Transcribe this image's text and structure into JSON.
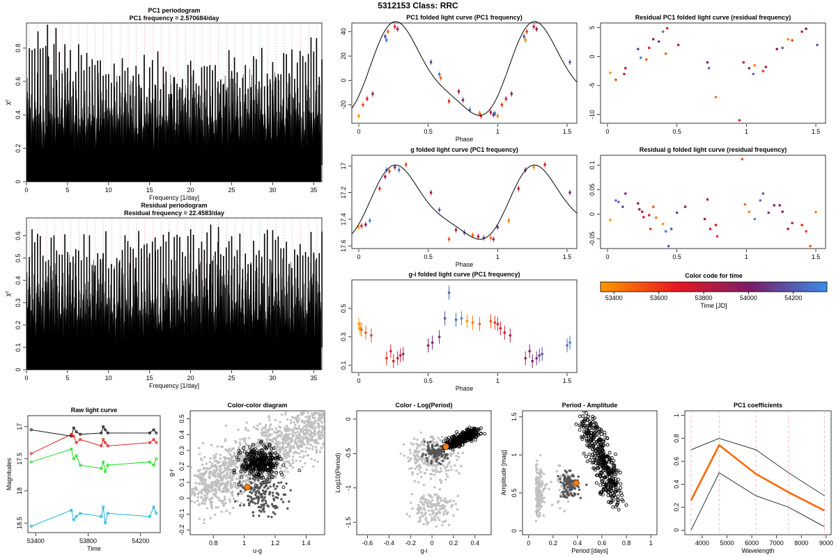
{
  "figure": {
    "header": "5312153     Class: RRC",
    "colorbar_label": "Time [JD]"
  },
  "chart_data": [
    {
      "id": "pc1_periodogram",
      "type": "line",
      "title": "PC1 periodogram",
      "subtitle": "PC1 frequency = 2.570684/day",
      "xlabel": "Frequency [1/day]",
      "ylabel": "χ²",
      "xlim": [
        0,
        36
      ],
      "ylim": [
        0,
        0.95
      ],
      "xticks": [
        0,
        5,
        10,
        15,
        20,
        25,
        30,
        35
      ],
      "yticks": [
        0.0,
        0.2,
        0.4,
        0.6,
        0.8
      ],
      "base_level": 0.28,
      "noise_level": 0.5,
      "peak_frequency": 2.570684,
      "peak_value": 0.94
    },
    {
      "id": "residual_periodogram",
      "type": "line",
      "title": "Residual periodogram",
      "subtitle": "Residual frequency = 22.4583/day",
      "xlabel": "Frequency [1/day]",
      "ylabel": "χ²",
      "xlim": [
        0,
        36
      ],
      "ylim": [
        0,
        0.68
      ],
      "xticks": [
        0,
        5,
        10,
        15,
        20,
        25,
        30,
        35
      ],
      "yticks": [
        0.0,
        0.1,
        0.2,
        0.3,
        0.4,
        0.5,
        0.6
      ],
      "base_level": 0.2,
      "noise_level": 0.45,
      "peak_frequency": 22.4583,
      "peak_value": 0.65
    },
    {
      "id": "pc1_folded",
      "type": "scatter",
      "title": "PC1 folded light curve (PC1 frequency)",
      "xlabel": "Phase",
      "xlim": [
        -0.05,
        1.57
      ],
      "ylim": [
        -35,
        47
      ],
      "xticks": [
        0.0,
        0.5,
        1.0,
        1.5
      ],
      "yticks": [
        -20,
        0,
        20,
        40
      ],
      "points": [
        [
          0.0,
          -29
        ],
        [
          0.03,
          -20
        ],
        [
          0.06,
          -15
        ],
        [
          0.1,
          -11
        ],
        [
          0.19,
          36
        ],
        [
          0.2,
          33
        ],
        [
          0.21,
          40
        ],
        [
          0.26,
          44
        ],
        [
          0.28,
          42
        ],
        [
          0.52,
          15
        ],
        [
          0.58,
          5
        ],
        [
          0.59,
          2
        ],
        [
          0.65,
          -17
        ],
        [
          0.72,
          -9
        ],
        [
          0.75,
          -16
        ],
        [
          0.8,
          -24
        ],
        [
          0.87,
          -27
        ],
        [
          0.88,
          -29
        ],
        [
          0.95,
          -26
        ],
        [
          0.97,
          -28
        ],
        [
          0.98,
          -27
        ],
        [
          1.0,
          -29
        ],
        [
          1.03,
          -20
        ],
        [
          1.06,
          -15
        ],
        [
          1.1,
          -11
        ],
        [
          1.19,
          36
        ],
        [
          1.2,
          33
        ],
        [
          1.21,
          40
        ],
        [
          1.26,
          44
        ],
        [
          1.28,
          42
        ],
        [
          1.52,
          15
        ]
      ]
    },
    {
      "id": "residual_pc1",
      "type": "scatter",
      "title": "Residual PC1 folded light curve (residual frequency)",
      "xlim": [
        -0.05,
        1.57
      ],
      "ylim": [
        -11.5,
        5.8
      ],
      "xticks": [
        0.0,
        0.5,
        1.0,
        1.5
      ],
      "yticks": [
        -10,
        -5,
        0,
        5
      ],
      "points": [
        [
          0.02,
          -2.8
        ],
        [
          0.06,
          -4
        ],
        [
          0.12,
          -3
        ],
        [
          0.13,
          -2
        ],
        [
          0.22,
          1.3
        ],
        [
          0.24,
          -0.2
        ],
        [
          0.28,
          -0.5
        ],
        [
          0.3,
          1.5
        ],
        [
          0.33,
          3
        ],
        [
          0.37,
          2.6
        ],
        [
          0.4,
          4.3
        ],
        [
          0.42,
          0.5
        ],
        [
          0.43,
          4.9
        ],
        [
          0.51,
          2
        ],
        [
          0.72,
          -1
        ],
        [
          0.73,
          -2
        ],
        [
          0.78,
          -7
        ],
        [
          0.95,
          -11
        ],
        [
          0.98,
          -1
        ],
        [
          1.02,
          -2
        ],
        [
          1.05,
          -3
        ],
        [
          1.06,
          -1.5
        ],
        [
          1.12,
          -2.5
        ],
        [
          1.14,
          -1.8
        ],
        [
          1.22,
          1.3
        ],
        [
          1.26,
          1.5
        ],
        [
          1.3,
          3
        ],
        [
          1.33,
          2.8
        ],
        [
          1.4,
          4.3
        ],
        [
          1.43,
          4.8
        ],
        [
          1.51,
          2
        ]
      ]
    },
    {
      "id": "g_folded",
      "type": "scatter",
      "title": "g folded light curve (PC1 frequency)",
      "xlabel": "Phase",
      "xlim": [
        -0.05,
        1.57
      ],
      "ylim": [
        17.62,
        16.92
      ],
      "xticks": [
        0.0,
        0.5,
        1.0,
        1.5
      ],
      "yticks": [
        17.0,
        17.2,
        17.4,
        17.6
      ],
      "points": [
        [
          0.0,
          17.46
        ],
        [
          0.02,
          17.45
        ],
        [
          0.05,
          17.44
        ],
        [
          0.08,
          17.41
        ],
        [
          0.15,
          17.17
        ],
        [
          0.19,
          17.08
        ],
        [
          0.2,
          17.03
        ],
        [
          0.22,
          17.04
        ],
        [
          0.26,
          17.01
        ],
        [
          0.29,
          17.03
        ],
        [
          0.34,
          16.99
        ],
        [
          0.52,
          17.2
        ],
        [
          0.58,
          17.33
        ],
        [
          0.65,
          17.55
        ],
        [
          0.7,
          17.48
        ],
        [
          0.76,
          17.5
        ],
        [
          0.82,
          17.52
        ],
        [
          0.86,
          17.53
        ],
        [
          0.9,
          17.54
        ],
        [
          0.95,
          17.54
        ],
        [
          0.97,
          17.55
        ],
        [
          1.0,
          17.46
        ],
        [
          1.08,
          17.41
        ],
        [
          1.15,
          17.17
        ],
        [
          1.2,
          17.03
        ],
        [
          1.26,
          17.01
        ],
        [
          1.34,
          16.99
        ],
        [
          1.52,
          17.2
        ]
      ]
    },
    {
      "id": "residual_g",
      "type": "scatter",
      "title": "Residual g folded light curve (residual frequency)",
      "xlim": [
        -0.05,
        1.57
      ],
      "ylim": [
        -0.07,
        0.12
      ],
      "xticks": [
        0.0,
        0.5,
        1.0,
        1.5
      ],
      "yticks": [
        -0.05,
        0.0,
        0.05,
        0.1
      ],
      "points": [
        [
          0.02,
          -0.012
        ],
        [
          0.06,
          0.028
        ],
        [
          0.08,
          0.025
        ],
        [
          0.11,
          0.015
        ],
        [
          0.13,
          0.042
        ],
        [
          0.22,
          0.022
        ],
        [
          0.23,
          0.01
        ],
        [
          0.25,
          0.005
        ],
        [
          0.26,
          -0.006
        ],
        [
          0.3,
          -0.002
        ],
        [
          0.31,
          -0.03
        ],
        [
          0.33,
          0.015
        ],
        [
          0.35,
          -0.007
        ],
        [
          0.4,
          -0.02
        ],
        [
          0.42,
          -0.035
        ],
        [
          0.44,
          -0.065
        ],
        [
          0.46,
          -0.03
        ],
        [
          0.5,
          0.003
        ],
        [
          0.56,
          0.015
        ],
        [
          0.7,
          -0.01
        ],
        [
          0.72,
          0.03
        ],
        [
          0.74,
          -0.03
        ],
        [
          0.78,
          -0.022
        ],
        [
          0.79,
          -0.045
        ],
        [
          0.97,
          0.112
        ],
        [
          0.99,
          0.02
        ],
        [
          1.02,
          0.005
        ],
        [
          1.06,
          -0.01
        ],
        [
          1.1,
          0.028
        ],
        [
          1.12,
          0.042
        ],
        [
          1.16,
          0.003
        ],
        [
          1.2,
          0.018
        ],
        [
          1.24,
          0.018
        ],
        [
          1.26,
          0.005
        ],
        [
          1.3,
          -0.03
        ],
        [
          1.33,
          -0.018
        ],
        [
          1.4,
          -0.022
        ],
        [
          1.43,
          -0.035
        ],
        [
          1.46,
          -0.065
        ],
        [
          1.5,
          0.004
        ]
      ]
    },
    {
      "id": "gi_folded",
      "type": "scatter",
      "title": "g-i folded light curve (PC1 frequency)",
      "xlabel": "Phase",
      "xlim": [
        -0.05,
        1.57
      ],
      "ylim": [
        0.05,
        0.7
      ],
      "xticks": [
        0.0,
        0.5,
        1.0,
        1.5
      ],
      "yticks": [
        0.1,
        0.3,
        0.5
      ],
      "points": [
        [
          0.0,
          0.39
        ],
        [
          0.01,
          0.36
        ],
        [
          0.02,
          0.35
        ],
        [
          0.05,
          0.33
        ],
        [
          0.09,
          0.31
        ],
        [
          0.2,
          0.15
        ],
        [
          0.23,
          0.2
        ],
        [
          0.25,
          0.13
        ],
        [
          0.28,
          0.15
        ],
        [
          0.3,
          0.17
        ],
        [
          0.32,
          0.18
        ],
        [
          0.5,
          0.24
        ],
        [
          0.53,
          0.26
        ],
        [
          0.58,
          0.3
        ],
        [
          0.62,
          0.43
        ],
        [
          0.65,
          0.61
        ],
        [
          0.7,
          0.42
        ],
        [
          0.74,
          0.43
        ],
        [
          0.78,
          0.41
        ],
        [
          0.82,
          0.4
        ],
        [
          0.87,
          0.39
        ],
        [
          0.95,
          0.41
        ],
        [
          0.98,
          0.4
        ],
        [
          1.0,
          0.39
        ],
        [
          1.02,
          0.36
        ],
        [
          1.05,
          0.33
        ],
        [
          1.09,
          0.31
        ],
        [
          1.2,
          0.15
        ],
        [
          1.23,
          0.2
        ],
        [
          1.25,
          0.13
        ],
        [
          1.28,
          0.15
        ],
        [
          1.3,
          0.17
        ],
        [
          1.32,
          0.18
        ],
        [
          1.5,
          0.24
        ],
        [
          1.52,
          0.26
        ]
      ]
    },
    {
      "id": "raw_light_curve",
      "type": "line",
      "title": "Raw light curve",
      "xlabel": "Time",
      "ylabel": "Magnitudes",
      "xlim": [
        53340,
        54350
      ],
      "ylim": [
        18.65,
        16.83
      ],
      "xticks": [
        53400,
        53800,
        54200
      ],
      "yticks": [
        17.0,
        17.5,
        18.0,
        18.5
      ],
      "series": [
        {
          "color": "#000000",
          "x": [
            53365,
            53672,
            53690,
            53710,
            53740,
            53900,
            53915,
            53930,
            53950,
            54270,
            54300,
            54320
          ],
          "values": [
            17.05,
            17.15,
            17.02,
            17.08,
            17.12,
            17.1,
            17.0,
            17.05,
            17.1,
            17.1,
            17.05,
            17.1
          ]
        },
        {
          "color": "#e60000",
          "x": [
            53365,
            53672,
            53690,
            53710,
            53740,
            53900,
            53915,
            53930,
            53950,
            54270,
            54300,
            54320
          ],
          "values": [
            17.42,
            17.12,
            17.15,
            17.25,
            17.2,
            17.3,
            17.2,
            17.25,
            17.3,
            17.25,
            17.2,
            17.25
          ]
        },
        {
          "color": "#00dd00",
          "x": [
            53365,
            53672,
            53690,
            53710,
            53740,
            53900,
            53915,
            53930,
            53950,
            54270,
            54300,
            54320
          ],
          "values": [
            17.55,
            17.35,
            17.5,
            17.45,
            17.6,
            17.65,
            17.55,
            17.7,
            17.6,
            17.55,
            17.6,
            17.5
          ]
        },
        {
          "color": "#00aadd",
          "x": [
            53365,
            53672,
            53690,
            53710,
            53740,
            53900,
            53915,
            53930,
            53950,
            54270,
            54300,
            54320
          ],
          "values": [
            18.55,
            18.3,
            18.45,
            18.4,
            18.35,
            18.4,
            18.25,
            18.5,
            18.35,
            18.4,
            18.25,
            18.35
          ]
        }
      ]
    },
    {
      "id": "color_color",
      "type": "scatter",
      "title": "Color-color diagram",
      "xlabel": "u-g",
      "ylabel": "g-r",
      "xlim": [
        0.65,
        1.52
      ],
      "ylim": [
        -0.23,
        0.55
      ],
      "xticks": [
        0.8,
        1.0,
        1.2,
        1.4
      ],
      "yticks": [
        -0.2,
        -0.1,
        0.0,
        0.1,
        0.2,
        0.3,
        0.4,
        0.5
      ],
      "highlight": [
        1.02,
        0.07
      ]
    },
    {
      "id": "color_logperiod",
      "type": "scatter",
      "title": "Color - Log(Period)",
      "xlabel": "g-i",
      "ylabel": "Log10(Period)",
      "xlim": [
        -0.7,
        0.55
      ],
      "ylim": [
        -1.68,
        0.12
      ],
      "xticks": [
        -0.6,
        -0.4,
        -0.2,
        0.0,
        0.2,
        0.4
      ],
      "yticks": [
        -1.5,
        -1.0,
        -0.5,
        0.0
      ],
      "highlight": [
        0.13,
        -0.4
      ]
    },
    {
      "id": "period_amplitude",
      "type": "scatter",
      "title": "Period - Amplitude",
      "xlabel": "Period [days]",
      "ylabel": "Amplitude [mag]",
      "xlim": [
        -0.05,
        1.05
      ],
      "ylim": [
        -0.05,
        1.58
      ],
      "xticks": [
        0.0,
        0.2,
        0.4,
        0.6,
        0.8,
        1.0
      ],
      "yticks": [
        0.0,
        0.5,
        1.0,
        1.5
      ],
      "highlight": [
        0.39,
        0.63
      ]
    },
    {
      "id": "pc1_coefficients",
      "type": "line",
      "title": "PC1 coefficients",
      "xlabel": "Wavelength",
      "xlim": [
        3300,
        9200
      ],
      "ylim": [
        -0.04,
        1.04
      ],
      "xticks": [
        4000,
        5000,
        6000,
        7000,
        8000,
        9000
      ],
      "yticks": [
        0.0,
        0.2,
        0.4,
        0.6,
        0.8,
        1.0
      ],
      "x": [
        3551,
        4686,
        6165,
        7481,
        8931
      ],
      "vlines": [
        3551,
        4686,
        6165,
        7481,
        8931
      ],
      "series": [
        {
          "color": "#ff6600",
          "values": [
            0.26,
            0.74,
            0.49,
            0.33,
            0.17
          ]
        },
        {
          "color": "#333333",
          "values": [
            0.7,
            0.8,
            0.7,
            0.5,
            0.3
          ]
        },
        {
          "color": "#333333",
          "values": [
            0.0,
            0.5,
            0.3,
            0.2,
            0.03
          ]
        }
      ]
    },
    {
      "id": "colorbar",
      "type": "heatmap",
      "title": "Color code for time",
      "xlabel": "Time [JD]",
      "xlim": [
        53340,
        54350
      ],
      "xticks": [
        53400,
        53600,
        53800,
        54000,
        54200
      ],
      "colors": [
        "#ff9900",
        "#e8171d",
        "#7a1d6a",
        "#3a8ce8"
      ]
    }
  ]
}
